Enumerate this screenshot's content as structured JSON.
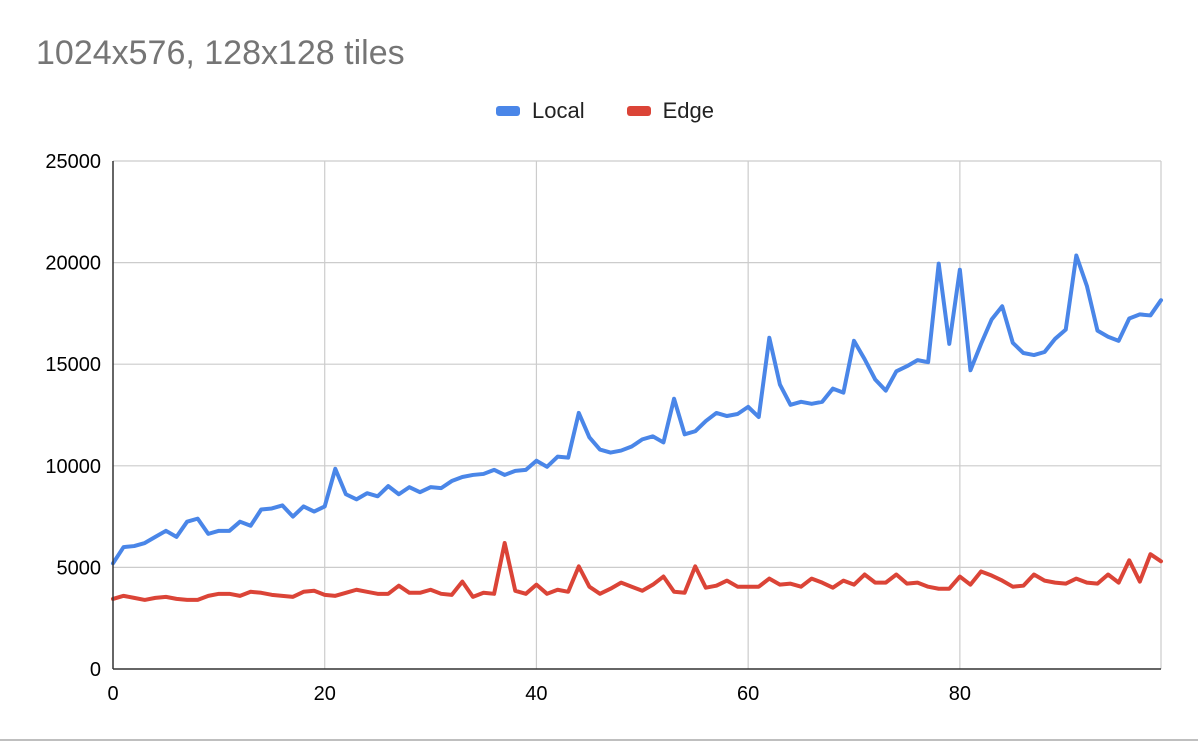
{
  "chart_data": {
    "type": "line",
    "title": "1024x576, 128x128 tiles",
    "xlabel": "",
    "ylabel": "",
    "xlim": [
      0,
      99
    ],
    "ylim": [
      0,
      25000
    ],
    "x_ticks": [
      0,
      20,
      40,
      60,
      80
    ],
    "y_ticks": [
      0,
      5000,
      10000,
      15000,
      20000,
      25000
    ],
    "grid": true,
    "legend_position": "top-center",
    "series": [
      {
        "name": "Local",
        "color": "#4a86e8",
        "values": [
          5200,
          6000,
          6050,
          6200,
          6500,
          6800,
          6500,
          7250,
          7400,
          6650,
          6800,
          6800,
          7250,
          7050,
          7850,
          7900,
          8050,
          7500,
          8000,
          7750,
          8000,
          9850,
          8600,
          8350,
          8650,
          8500,
          9000,
          8600,
          8950,
          8700,
          8950,
          8900,
          9250,
          9450,
          9550,
          9600,
          9800,
          9550,
          9750,
          9800,
          10250,
          9950,
          10450,
          10400,
          12600,
          11400,
          10800,
          10650,
          10750,
          10950,
          11300,
          11450,
          11150,
          13300,
          11550,
          11700,
          12200,
          12600,
          12450,
          12550,
          12900,
          12400,
          16300,
          14000,
          13000,
          13150,
          13050,
          13150,
          13800,
          13600,
          16150,
          15250,
          14250,
          13700,
          14650,
          14900,
          15200,
          15100,
          19950,
          16000,
          19650,
          14700,
          16000,
          17200,
          17850,
          16050,
          15550,
          15450,
          15600,
          16250,
          16700,
          20350,
          18850,
          16650,
          16350,
          16150,
          17250,
          17450,
          17400,
          18150
        ]
      },
      {
        "name": "Edge",
        "color": "#db4437",
        "values": [
          3450,
          3600,
          3500,
          3400,
          3500,
          3550,
          3450,
          3400,
          3400,
          3600,
          3700,
          3700,
          3600,
          3800,
          3750,
          3650,
          3600,
          3550,
          3800,
          3850,
          3650,
          3600,
          3750,
          3900,
          3800,
          3700,
          3700,
          4100,
          3750,
          3750,
          3900,
          3700,
          3650,
          4300,
          3550,
          3750,
          3700,
          6200,
          3850,
          3700,
          4150,
          3700,
          3900,
          3800,
          5050,
          4050,
          3700,
          3950,
          4250,
          4050,
          3850,
          4150,
          4550,
          3800,
          3750,
          5050,
          4000,
          4100,
          4350,
          4050,
          4050,
          4050,
          4450,
          4150,
          4200,
          4050,
          4450,
          4250,
          4000,
          4350,
          4150,
          4650,
          4250,
          4250,
          4650,
          4200,
          4250,
          4050,
          3950,
          3950,
          4550,
          4150,
          4800,
          4600,
          4350,
          4050,
          4100,
          4650,
          4350,
          4250,
          4200,
          4450,
          4250,
          4200,
          4650,
          4250,
          5350,
          4300,
          5650,
          5300
        ]
      }
    ]
  }
}
